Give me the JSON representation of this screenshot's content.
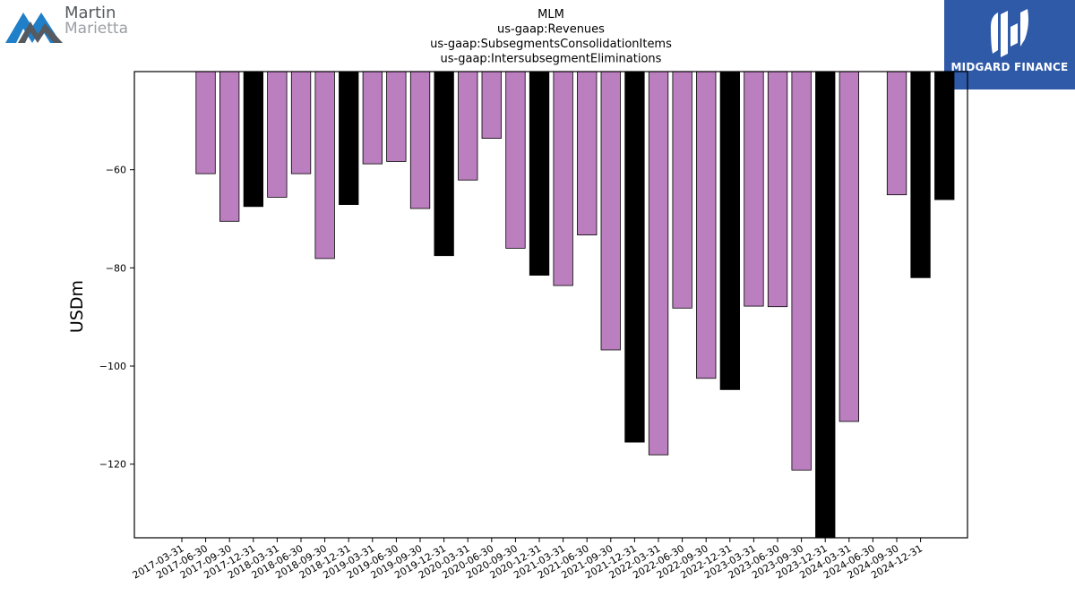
{
  "branding": {
    "company_logo_line1": "Martin",
    "company_logo_line2": "Marietta",
    "publisher_logo_text": "MIDGARD FINANCE"
  },
  "chart_data": {
    "type": "bar",
    "title_lines": [
      "MLM",
      "us-gaap:Revenues",
      "us-gaap:SubsegmentsConsolidationItems",
      "us-gaap:IntersubsegmentEliminations"
    ],
    "xlabel": "",
    "ylabel": "USDm",
    "ylim": [
      -135,
      -40
    ],
    "yticks": [
      -60,
      -80,
      -100,
      -120
    ],
    "grid": false,
    "colors": {
      "quarter": "#bb7fbf",
      "year_end": "#000000",
      "edge": "#000000"
    },
    "categories": [
      "2017-03-31",
      "2017-06-30",
      "2017-09-30",
      "2017-12-31",
      "2018-03-31",
      "2018-06-30",
      "2018-09-30",
      "2018-12-31",
      "2019-03-31",
      "2019-06-30",
      "2019-09-30",
      "2019-12-31",
      "2020-03-31",
      "2020-06-30",
      "2020-09-30",
      "2020-12-31",
      "2021-03-31",
      "2021-06-30",
      "2021-09-30",
      "2021-12-31",
      "2022-03-31",
      "2022-06-30",
      "2022-09-30",
      "2022-12-31",
      "2023-03-31",
      "2023-06-30",
      "2023-09-30",
      "2023-12-31",
      "2024-03-31",
      "2024-06-30",
      "2024-09-30",
      "2024-12-31"
    ],
    "values": [
      null,
      -60.8,
      -70.5,
      -67.5,
      -65.6,
      -60.8,
      -78.1,
      -67.1,
      -58.8,
      -58.3,
      -67.9,
      -77.5,
      -62.1,
      -53.6,
      -76.0,
      -81.5,
      -83.6,
      -73.3,
      -96.7,
      -115.5,
      -118.1,
      -88.2,
      -102.5,
      -104.8,
      -87.8,
      -87.9,
      -121.2,
      -136.0,
      -111.3,
      null,
      -65.1,
      -82.0
    ],
    "extra_last_bar": {
      "label": "",
      "value": -66.1
    },
    "bar_color_roles": [
      "quarter",
      "quarter",
      "quarter",
      "year_end",
      "quarter",
      "quarter",
      "quarter",
      "year_end",
      "quarter",
      "quarter",
      "quarter",
      "year_end",
      "quarter",
      "quarter",
      "quarter",
      "year_end",
      "quarter",
      "quarter",
      "quarter",
      "year_end",
      "quarter",
      "quarter",
      "quarter",
      "year_end",
      "quarter",
      "quarter",
      "quarter",
      "year_end",
      "quarter",
      "quarter",
      "quarter",
      "year_end"
    ]
  }
}
